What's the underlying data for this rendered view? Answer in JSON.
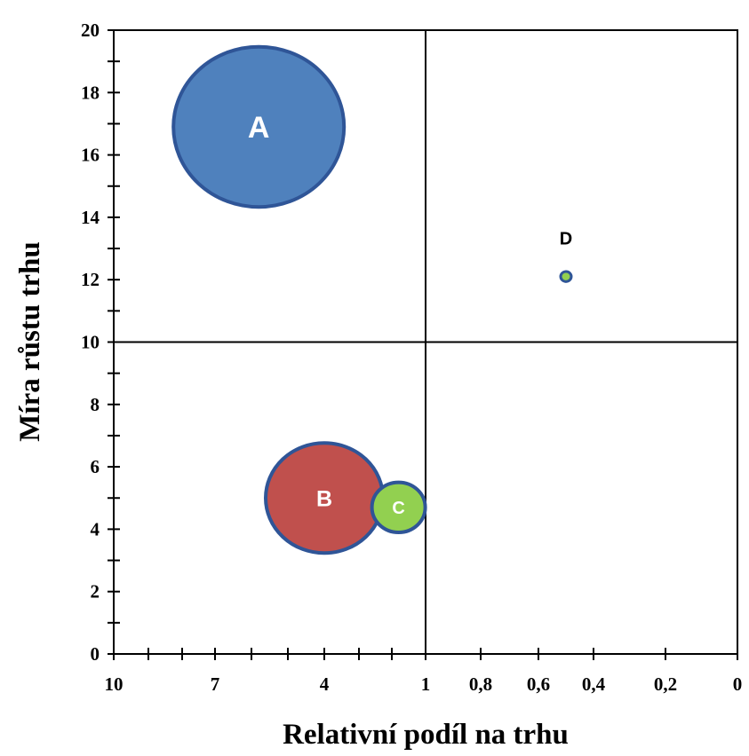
{
  "chart_data": {
    "type": "scatter",
    "subtype": "bubble",
    "title": "",
    "xlabel": "Relativní podíl na trhu",
    "ylabel": "Míra růstu trhu",
    "x_axis": {
      "reversed": true,
      "tick_labels": [
        "10",
        "7",
        "4",
        "1",
        "0,8",
        "0,6",
        "0,4",
        "0,2",
        "0"
      ]
    },
    "y_axis": {
      "ylim": [
        0,
        20
      ],
      "tick_labels": [
        "0",
        "2",
        "4",
        "6",
        "8",
        "10",
        "12",
        "14",
        "16",
        "18",
        "20"
      ]
    },
    "quadrant_lines": {
      "x": "1",
      "y": 10
    },
    "grid": false,
    "legend": "none",
    "bubbles": [
      {
        "label": "A",
        "x": 5.8,
        "y": 16.9,
        "size": 96,
        "color": "#4f81bd",
        "stroke": "#2f5597",
        "label_color": "#ffffff",
        "label_inside": true
      },
      {
        "label": "B",
        "x": 4.0,
        "y": 5.0,
        "size": 66,
        "color": "#c0504d",
        "stroke": "#2f5597",
        "label_color": "#ffffff",
        "label_inside": true
      },
      {
        "label": "C",
        "x": 1.8,
        "y": 4.7,
        "size": 30,
        "color": "#92d050",
        "stroke": "#2f5597",
        "label_color": "#ffffff",
        "label_inside": true
      },
      {
        "label": "D",
        "x": 0.5,
        "y": 12.1,
        "size": 6,
        "color": "#92d050",
        "stroke": "#2f5597",
        "label_color": "#000000",
        "label_inside": false
      }
    ]
  }
}
